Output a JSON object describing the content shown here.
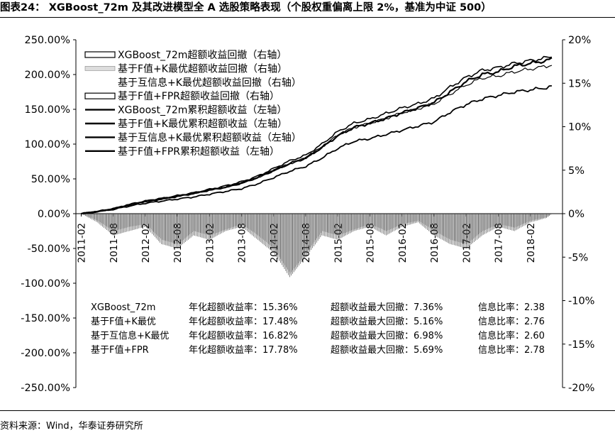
{
  "title": "图表24：  XGBoost_72m 及其改进模型全 A 选股策略表现（个股权重偏离上限 2%，基准为中证 500）",
  "source": "资料来源：Wind，华泰证券研究所",
  "chart_data": {
    "type": "line",
    "left_axis": {
      "ticks": [
        "250.00%",
        "200.00%",
        "150.00%",
        "100.00%",
        "50.00%",
        "0.00%",
        "-50.00%",
        "-100.00%",
        "-150.00%",
        "-200.00%",
        "-250.00%"
      ],
      "range": [
        -250,
        250
      ]
    },
    "right_axis": {
      "ticks": [
        "20%",
        "15%",
        "10%",
        "5%",
        "0%",
        "-5%",
        "-10%",
        "-15%",
        "-20%"
      ],
      "range": [
        -20,
        20
      ]
    },
    "x_ticks": [
      "2011-02",
      "2011-08",
      "2012-02",
      "2012-08",
      "2013-02",
      "2013-08",
      "2014-02",
      "2014-08",
      "2015-02",
      "2015-08",
      "2016-02",
      "2016-08",
      "2017-02",
      "2017-08",
      "2018-02"
    ],
    "legend": [
      {
        "label": "XGBoost_72m超额收益回撤（右轴）",
        "style": "area-outline"
      },
      {
        "label": "基于F值+K最优超额收益回撤（右轴）",
        "style": "area-light"
      },
      {
        "label": "基于互信息+K最优超额收益回撤（右轴）",
        "style": "area-none"
      },
      {
        "label": "基于F值+FPR超额收益回撤（右轴）",
        "style": "area-outline"
      },
      {
        "label": "XGBoost_72m累积超额收益（左轴）",
        "style": "line"
      },
      {
        "label": "基于F值+K最优累积超额收益（左轴）",
        "style": "line"
      },
      {
        "label": "基于互信息+K最优累积超额收益（左轴）",
        "style": "line"
      },
      {
        "label": "基于F值+FPR累积超额收益（左轴）",
        "style": "line"
      }
    ],
    "x_months": [
      0,
      3,
      6,
      9,
      12,
      15,
      18,
      21,
      24,
      27,
      30,
      33,
      36,
      39,
      42,
      45,
      48,
      51,
      54,
      57,
      60,
      63,
      66,
      69,
      72,
      75,
      78,
      81,
      84,
      87,
      88
    ],
    "series": [
      {
        "name": "XGBoost_72m累积超额收益（左轴）",
        "axis": "left",
        "values": [
          0,
          3,
          7,
          13,
          18,
          21,
          25,
          29,
          34,
          38,
          44,
          52,
          62,
          72,
          80,
          95,
          112,
          124,
          130,
          137,
          145,
          152,
          160,
          175,
          190,
          200,
          204,
          212,
          216,
          220,
          222
        ]
      },
      {
        "name": "基于F值+K最优累积超额收益（左轴）",
        "axis": "left",
        "values": [
          0,
          3,
          7,
          13,
          18,
          22,
          26,
          30,
          35,
          40,
          46,
          54,
          65,
          76,
          84,
          100,
          118,
          130,
          136,
          144,
          152,
          158,
          166,
          182,
          196,
          206,
          210,
          216,
          220,
          224,
          226
        ]
      },
      {
        "name": "基于互信息+K最优累积超额收益（左轴）",
        "axis": "left",
        "values": [
          0,
          3,
          7,
          12,
          17,
          21,
          25,
          29,
          34,
          38,
          44,
          52,
          62,
          72,
          80,
          96,
          113,
          124,
          130,
          137,
          145,
          151,
          158,
          172,
          185,
          195,
          198,
          204,
          208,
          212,
          214
        ]
      },
      {
        "name": "基于F值+FPR累积超额收益（左轴）",
        "axis": "left",
        "values": [
          0,
          3,
          6,
          11,
          15,
          18,
          21,
          24,
          28,
          32,
          36,
          43,
          52,
          61,
          68,
          80,
          94,
          104,
          108,
          114,
          120,
          126,
          132,
          146,
          157,
          165,
          170,
          175,
          178,
          181,
          183
        ]
      }
    ],
    "drawdowns": [
      {
        "name": "XGBoost_72m超额收益回撤（右轴）",
        "axis": "right",
        "values": [
          0,
          -1.0,
          -2.5,
          -2.0,
          -1.5,
          -3.5,
          -4.0,
          -2.5,
          -3.0,
          -2.0,
          -1.5,
          -3.0,
          -4.5,
          -7.3,
          -5.0,
          -2.5,
          -3.0,
          -2.0,
          -1.5,
          -2.5,
          -1.5,
          -1.0,
          -2.5,
          -3.5,
          -4.0,
          -2.5,
          -1.5,
          -2.0,
          -1.0,
          -0.5,
          0
        ]
      },
      {
        "name": "基于互信息+K最优超额收益回撤（右轴）",
        "axis": "right",
        "values": [
          0,
          -0.8,
          -2.0,
          -1.5,
          -1.2,
          -3.0,
          -3.5,
          -2.0,
          -2.5,
          -1.8,
          -1.2,
          -2.5,
          -4.0,
          -6.9,
          -4.5,
          -2.0,
          -2.5,
          -1.8,
          -1.2,
          -2.0,
          -1.2,
          -0.8,
          -2.0,
          -3.0,
          -3.5,
          -2.0,
          -1.2,
          -1.6,
          -0.8,
          -0.4,
          0
        ]
      }
    ]
  },
  "stats": [
    [
      "XGBoost_72m",
      "年化超额收益率：15.36%",
      "超额收益最大回撤：7.36%",
      "信息比率：2.38"
    ],
    [
      "基于F值+K最优",
      "年化超额收益率：17.48%",
      "超额收益最大回撤：5.16%",
      "信息比率：2.76"
    ],
    [
      "基于互信息+K最优",
      "年化超额收益率：16.82%",
      "超额收益最大回撤：6.98%",
      "信息比率：2.60"
    ],
    [
      "基于F值+FPR",
      "年化超额收益率：17.78%",
      "超额收益最大回撤：5.69%",
      "信息比率：2.78"
    ]
  ]
}
